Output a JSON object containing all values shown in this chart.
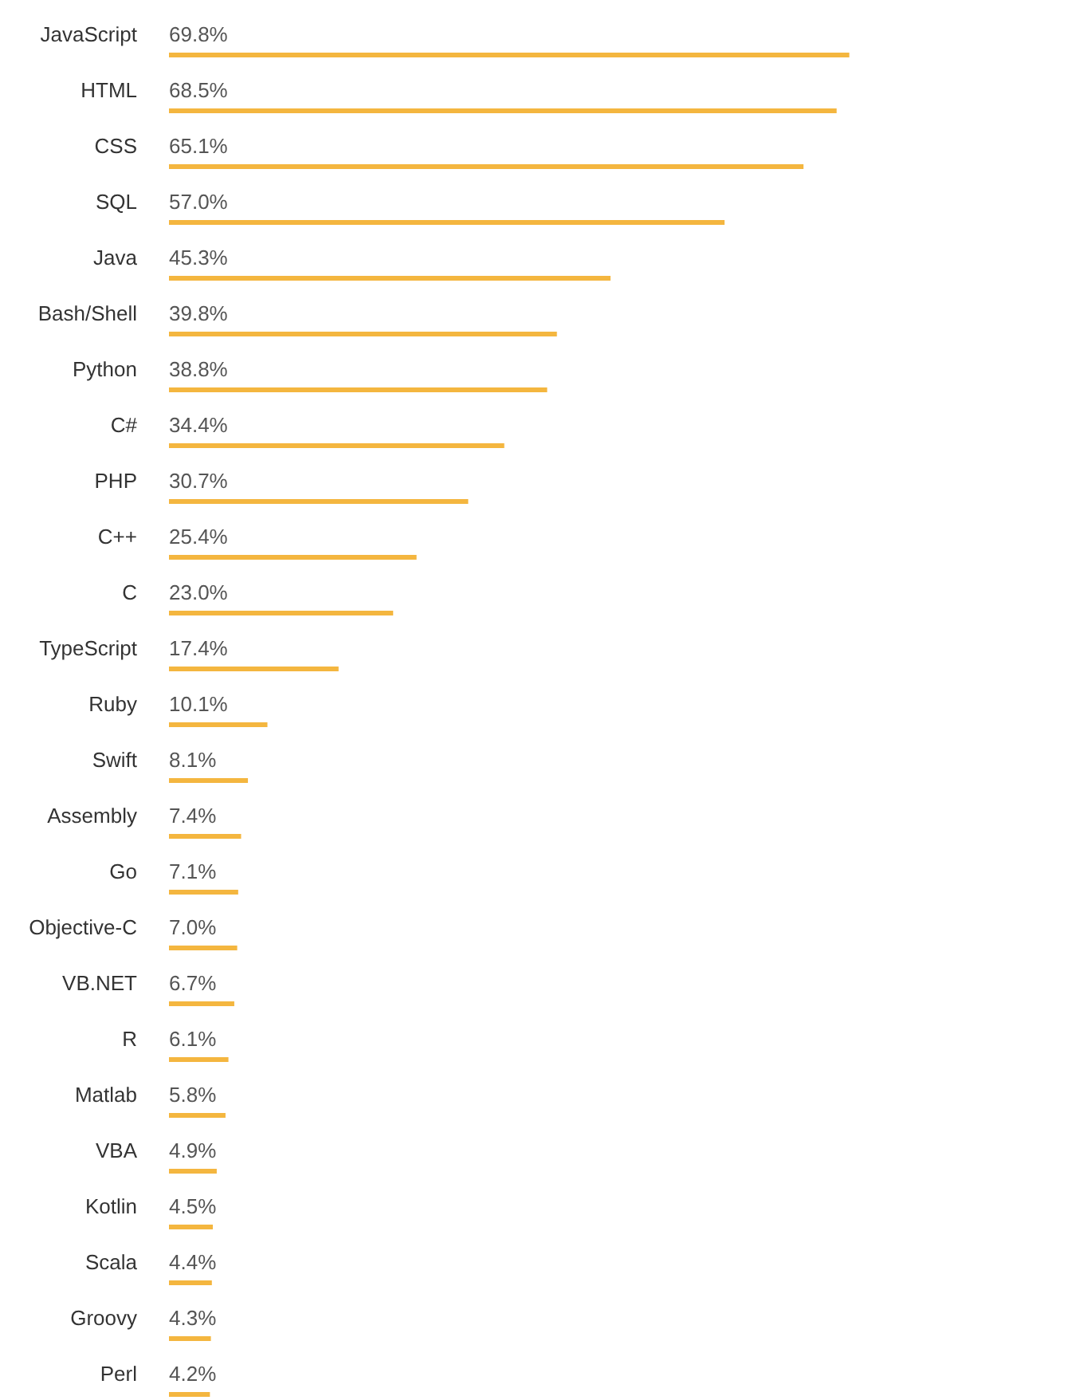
{
  "chart_data": {
    "type": "bar",
    "orientation": "horizontal",
    "categories": [
      "JavaScript",
      "HTML",
      "CSS",
      "SQL",
      "Java",
      "Bash/Shell",
      "Python",
      "C#",
      "PHP",
      "C++",
      "C",
      "TypeScript",
      "Ruby",
      "Swift",
      "Assembly",
      "Go",
      "Objective-C",
      "VB.NET",
      "R",
      "Matlab",
      "VBA",
      "Kotlin",
      "Scala",
      "Groovy",
      "Perl"
    ],
    "values": [
      69.8,
      68.5,
      65.1,
      57.0,
      45.3,
      39.8,
      38.8,
      34.4,
      30.7,
      25.4,
      23.0,
      17.4,
      10.1,
      8.1,
      7.4,
      7.1,
      7.0,
      6.7,
      6.1,
      5.8,
      4.9,
      4.5,
      4.4,
      4.3,
      4.2
    ],
    "value_labels": [
      "69.8%",
      "68.5%",
      "65.1%",
      "57.0%",
      "45.3%",
      "39.8%",
      "38.8%",
      "34.4%",
      "30.7%",
      "25.4%",
      "23.0%",
      "17.4%",
      "10.1%",
      "8.1%",
      "7.4%",
      "7.1%",
      "7.0%",
      "6.7%",
      "6.1%",
      "5.8%",
      "4.9%",
      "4.5%",
      "4.4%",
      "4.3%",
      "4.2%"
    ],
    "color": "#f4b63f",
    "xlim": [
      0,
      70
    ],
    "tick_labels": "y"
  }
}
